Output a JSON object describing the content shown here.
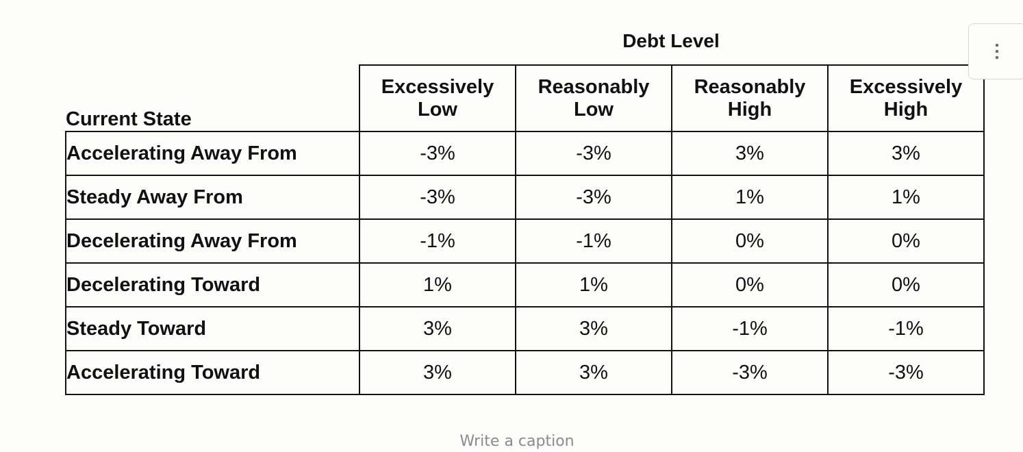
{
  "table": {
    "group_header": "Debt Level",
    "row_header": "Current State",
    "columns": [
      [
        "Excessively",
        "Low"
      ],
      [
        "Reasonably",
        "Low"
      ],
      [
        "Reasonably",
        "High"
      ],
      [
        "Excessively",
        "High"
      ]
    ],
    "rows": [
      {
        "label": "Accelerating Away From",
        "values": [
          "-3%",
          "-3%",
          "3%",
          "3%"
        ]
      },
      {
        "label": "Steady Away From",
        "values": [
          "-3%",
          "-3%",
          "1%",
          "1%"
        ]
      },
      {
        "label": "Decelerating Away From",
        "values": [
          "-1%",
          "-1%",
          "0%",
          "0%"
        ]
      },
      {
        "label": "Decelerating Toward",
        "values": [
          "1%",
          "1%",
          "0%",
          "0%"
        ]
      },
      {
        "label": "Steady Toward",
        "values": [
          "3%",
          "3%",
          "-1%",
          "-1%"
        ]
      },
      {
        "label": "Accelerating Toward",
        "values": [
          "3%",
          "3%",
          "-3%",
          "-3%"
        ]
      }
    ]
  },
  "toolbar": {
    "more_icon": "vertical-ellipsis-icon"
  },
  "caption": {
    "placeholder": "Write a caption"
  }
}
